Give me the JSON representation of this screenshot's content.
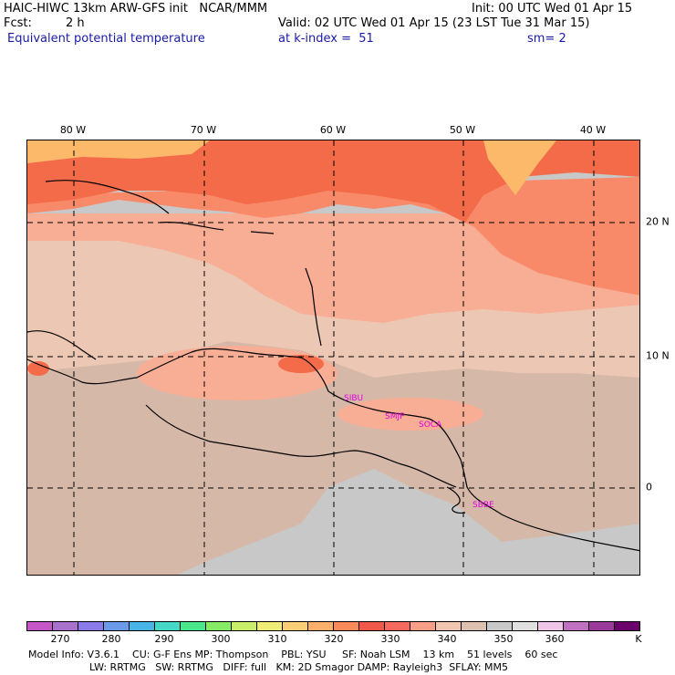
{
  "header": {
    "title": "HAIC-HIWC 13km ARW-GFS init   NCAR/MMM",
    "init": "Init: 00 UTC Wed 01 Apr 15",
    "fcst_label": "Fcst:",
    "fcst_value": "2 h",
    "valid": "Valid: 02 UTC Wed 01 Apr 15 (23 LST Tue 31 Mar 15)",
    "field": "Equivalent potential temperature",
    "level": "at k-index =  51",
    "smooth": "sm= 2"
  },
  "map": {
    "lon_labels": [
      "80 W",
      "70 W",
      "60 W",
      "50 W",
      "40 W"
    ],
    "lat_labels": [
      "20 N",
      "10 N",
      "0"
    ],
    "stations": [
      "SIBU",
      "SMJP",
      "SOCA",
      "SBBE"
    ],
    "region_colors": {
      "north_warm": "#f46b4a",
      "north_peak": "#fcb96a",
      "band_orange": "#f88a6a",
      "mid_salmon": "#f8ad95",
      "mid_pale": "#ecc8b4",
      "south_tan": "#d6b8a8",
      "south_grey": "#c8c8c8"
    }
  },
  "colorbar": {
    "colors": [
      "#c655c8",
      "#a872cc",
      "#8a7ae8",
      "#6a9ae8",
      "#48b4e6",
      "#46d8c6",
      "#4ae88a",
      "#86ec66",
      "#c8ee6a",
      "#f0ec78",
      "#fcce7a",
      "#fcb06a",
      "#f88a5a",
      "#f0584a",
      "#f46a5e",
      "#f89e86",
      "#f2c6ae",
      "#dcc0b0",
      "#c8c8c8",
      "#e0e0e0",
      "#eec4e8",
      "#c070c0",
      "#9a3a9a",
      "#6a006a"
    ],
    "labels": [
      "270",
      "280",
      "290",
      "300",
      "310",
      "320",
      "330",
      "340",
      "350",
      "360",
      "K"
    ]
  },
  "footer": {
    "line1": "Model Info: V3.6.1    CU: G-F Ens MP: Thompson    PBL: YSU     SF: Noah LSM    13 km    51 levels    60 sec",
    "line2": "LW: RRTMG   SW: RRTMG   DIFF: full   KM: 2D Smagor DAMP: Rayleigh3  SFLAY: MM5"
  }
}
